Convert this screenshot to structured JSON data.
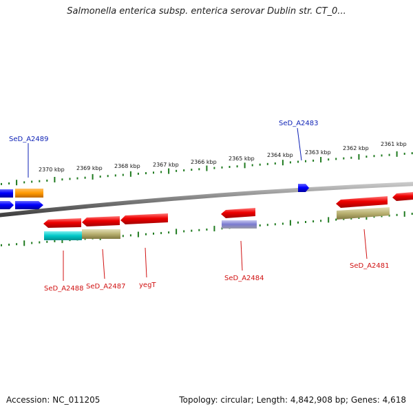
{
  "title": "Salmonella enterica subsp. enterica serovar Dublin str. CT_0...",
  "footer": {
    "accession": "Accession: NC_011205",
    "topology": "Topology: circular; Length: 4,842,908 bp; Genes: 4,618"
  },
  "colors": {
    "tick_green": "#1f7a1f",
    "backbone": "#7f7f7f",
    "forward_gene": "#0000ff",
    "reverse_gene": "#ee0000",
    "label_blue": "#0b1fb5",
    "label_red": "#d01010",
    "orange": "#ff9900",
    "cyan": "#00c8c8",
    "khaki": "#b8b070",
    "lavender": "#7a7ad0"
  },
  "kbp_ticks": [
    "2370 kbp",
    "2369 kbp",
    "2368 kbp",
    "2367 kbp",
    "2366 kbp",
    "2365 kbp",
    "2364 kbp",
    "2363 kbp",
    "2362 kbp",
    "2361 kbp"
  ],
  "gene_labels_top": [
    "SeD_A2489",
    "SeD_A2483"
  ],
  "gene_labels_bottom": [
    "SeD_A2488",
    "SeD_A2487",
    "yegT",
    "SeD_A2484",
    "SeD_A2481"
  ]
}
